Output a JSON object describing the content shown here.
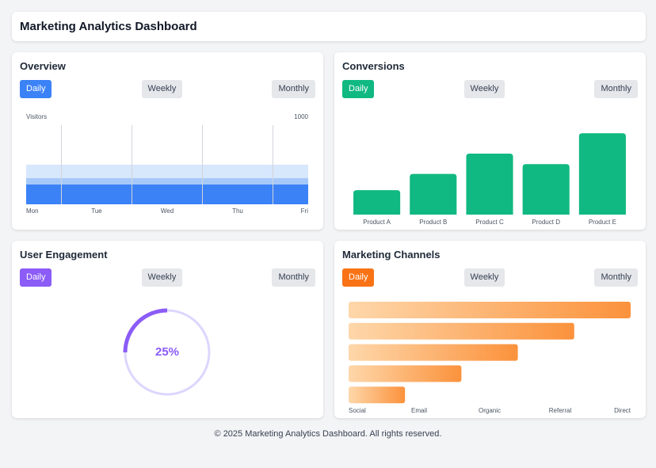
{
  "header": {
    "title": "Marketing Analytics Dashboard"
  },
  "panels": [
    {
      "title": "Overview",
      "buttons": [
        "Daily",
        "Weekly",
        "Monthly"
      ],
      "accent": "#3b82f6",
      "chart_data": {
        "type": "area",
        "y_label": "Visitors",
        "categories": [
          "Mon",
          "Tue",
          "Wed",
          "Thu",
          "Fri"
        ],
        "series": [
          {
            "color": "#d7e7fc",
            "values": [
              500,
              500,
              500,
              500,
              500
            ]
          },
          {
            "color": "#a6c9f9",
            "values": [
              330,
              330,
              330,
              330,
              330
            ]
          },
          {
            "color": "#3b82f6",
            "values": [
              250,
              250,
              250,
              250,
              250
            ]
          }
        ],
        "ylim": [
          0,
          1000
        ],
        "yticks": [
          1000
        ],
        "grid": true
      }
    },
    {
      "title": "Conversions",
      "buttons": [
        "Daily",
        "Weekly",
        "Monthly"
      ],
      "accent": "#10b981",
      "chart_data": {
        "type": "bar",
        "categories": [
          "Product A",
          "Product B",
          "Product C",
          "Product D",
          "Product E"
        ],
        "values": [
          30,
          50,
          75,
          62,
          100
        ],
        "color": "#10b981",
        "ylim": [
          0,
          110
        ]
      }
    },
    {
      "title": "User Engagement",
      "buttons": [
        "Daily",
        "Weekly",
        "Monthly"
      ],
      "accent": "#8b5cf6",
      "chart_data": {
        "type": "donut",
        "values": [
          25
        ],
        "value_labels": [
          "25%"
        ],
        "color": "#8b5cf6",
        "track_color": "#ddd6fe",
        "range": [
          0,
          100
        ]
      }
    },
    {
      "title": "Marketing Channels",
      "buttons": [
        "Daily",
        "Weekly",
        "Monthly"
      ],
      "accent": "#f97316",
      "chart_data": {
        "type": "hbar",
        "categories": [
          "Social",
          "Email",
          "Organic",
          "Referral",
          "Direct"
        ],
        "values": [
          100,
          80,
          60,
          40,
          20
        ],
        "colors": [
          "#fed7aa",
          "#fb923c"
        ],
        "xlim": [
          0,
          100
        ]
      }
    }
  ],
  "footer": "© 2025 Marketing Analytics Dashboard. All rights reserved."
}
